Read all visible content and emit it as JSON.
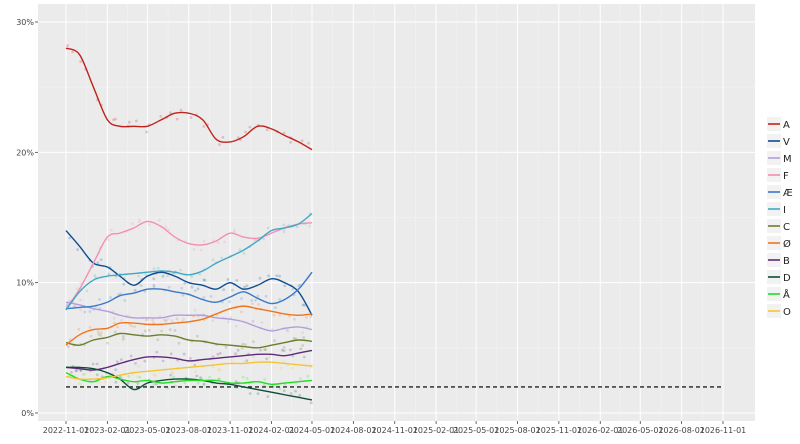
{
  "chart_data": {
    "type": "line",
    "title": "",
    "xlabel": "",
    "ylabel": "",
    "x_tick_labels": [
      "2022-11-01",
      "2023-02-01",
      "2023-05-01",
      "2023-08-01",
      "2023-11-01",
      "2024-02-01",
      "2024-05-01",
      "2024-08-01",
      "2024-11-01",
      "2025-02-01",
      "2025-05-01",
      "2025-08-01",
      "2025-11-01",
      "2026-02-01",
      "2026-05-01",
      "2026-08-01",
      "2026-11-01"
    ],
    "y_tick_labels": [
      "0%",
      "10%",
      "20%",
      "30%"
    ],
    "ylim": [
      0,
      30
    ],
    "grid": true,
    "legend_position": "right",
    "threshold": {
      "value": 2,
      "style": "dashed"
    },
    "x": [
      "2022-11-01",
      "2022-12-01",
      "2023-01-01",
      "2023-02-01",
      "2023-03-01",
      "2023-04-01",
      "2023-05-01",
      "2023-06-01",
      "2023-07-01",
      "2023-08-01",
      "2023-09-01",
      "2023-10-01",
      "2023-11-01",
      "2023-12-01",
      "2024-01-01",
      "2024-02-01",
      "2024-03-01",
      "2024-04-01",
      "2024-05-01"
    ],
    "series": [
      {
        "name": "A",
        "color": "#c0221b",
        "values": [
          28.0,
          27.5,
          25.0,
          22.5,
          22.0,
          22.0,
          22.0,
          22.5,
          23.0,
          23.0,
          22.5,
          21.0,
          20.8,
          21.2,
          22.0,
          21.8,
          21.3,
          20.8,
          20.2
        ]
      },
      {
        "name": "V",
        "color": "#0a4d91",
        "values": [
          14.0,
          12.8,
          11.5,
          11.2,
          10.5,
          9.8,
          10.5,
          10.8,
          10.5,
          10.0,
          9.8,
          9.5,
          10.0,
          9.5,
          9.8,
          10.3,
          10.0,
          9.3,
          7.5
        ]
      },
      {
        "name": "M",
        "color": "#b39ddb",
        "values": [
          8.5,
          8.3,
          8.0,
          7.8,
          7.5,
          7.3,
          7.3,
          7.3,
          7.5,
          7.5,
          7.5,
          7.3,
          7.2,
          7.0,
          6.6,
          6.3,
          6.5,
          6.6,
          6.4
        ]
      },
      {
        "name": "F",
        "color": "#f48fb1",
        "values": [
          8.0,
          9.5,
          11.5,
          13.5,
          13.8,
          14.2,
          14.7,
          14.3,
          13.5,
          13.0,
          12.9,
          13.2,
          13.8,
          13.5,
          13.4,
          13.8,
          14.2,
          14.5,
          14.6
        ]
      },
      {
        "name": "Æ",
        "color": "#3a78c9",
        "values": [
          8.0,
          8.1,
          8.2,
          8.5,
          9.0,
          9.2,
          9.5,
          9.5,
          9.3,
          9.1,
          8.7,
          8.5,
          8.9,
          9.3,
          8.8,
          8.4,
          8.7,
          9.5,
          10.8
        ]
      },
      {
        "name": "I",
        "color": "#41a8c6",
        "values": [
          7.9,
          9.3,
          10.2,
          10.5,
          10.6,
          10.7,
          10.8,
          10.9,
          10.8,
          10.6,
          10.9,
          11.5,
          12.0,
          12.5,
          13.2,
          14.0,
          14.2,
          14.5,
          15.3
        ]
      },
      {
        "name": "C",
        "color": "#6b7d2e",
        "values": [
          5.4,
          5.2,
          5.6,
          5.8,
          6.1,
          6.0,
          5.9,
          6.0,
          5.9,
          5.6,
          5.5,
          5.3,
          5.2,
          5.1,
          5.0,
          5.2,
          5.4,
          5.6,
          5.5
        ]
      },
      {
        "name": "Ø",
        "color": "#f0741e",
        "values": [
          5.2,
          6.0,
          6.4,
          6.5,
          6.9,
          6.9,
          6.8,
          6.8,
          6.9,
          7.0,
          7.2,
          7.6,
          8.0,
          8.2,
          8.0,
          7.8,
          7.6,
          7.5,
          7.6
        ]
      },
      {
        "name": "B",
        "color": "#5e2a7a",
        "values": [
          3.5,
          3.4,
          3.3,
          3.5,
          3.8,
          4.1,
          4.3,
          4.3,
          4.2,
          4.0,
          4.1,
          4.2,
          4.3,
          4.4,
          4.5,
          4.5,
          4.4,
          4.6,
          4.8
        ]
      },
      {
        "name": "D",
        "color": "#0d4d3a",
        "values": [
          3.5,
          3.5,
          3.4,
          3.1,
          2.6,
          1.8,
          2.3,
          2.5,
          2.6,
          2.6,
          2.5,
          2.3,
          2.2,
          2.0,
          1.8,
          1.6,
          1.4,
          1.2,
          1.0
        ]
      },
      {
        "name": "Å",
        "color": "#22dd22",
        "values": [
          3.1,
          2.6,
          2.4,
          2.8,
          2.6,
          2.4,
          2.5,
          2.3,
          2.4,
          2.5,
          2.5,
          2.5,
          2.3,
          2.3,
          2.4,
          2.2,
          2.3,
          2.4,
          2.5
        ]
      },
      {
        "name": "O",
        "color": "#f5c431",
        "values": [
          2.8,
          2.6,
          2.6,
          2.7,
          2.9,
          3.1,
          3.2,
          3.3,
          3.4,
          3.5,
          3.6,
          3.7,
          3.8,
          3.8,
          3.9,
          3.9,
          3.8,
          3.7,
          3.6
        ]
      }
    ]
  },
  "colors": {
    "panel_background": "#ebebeb",
    "grid_major": "#ffffff",
    "grid_minor": "#f3f3f3",
    "threshold_line": "#222222"
  }
}
